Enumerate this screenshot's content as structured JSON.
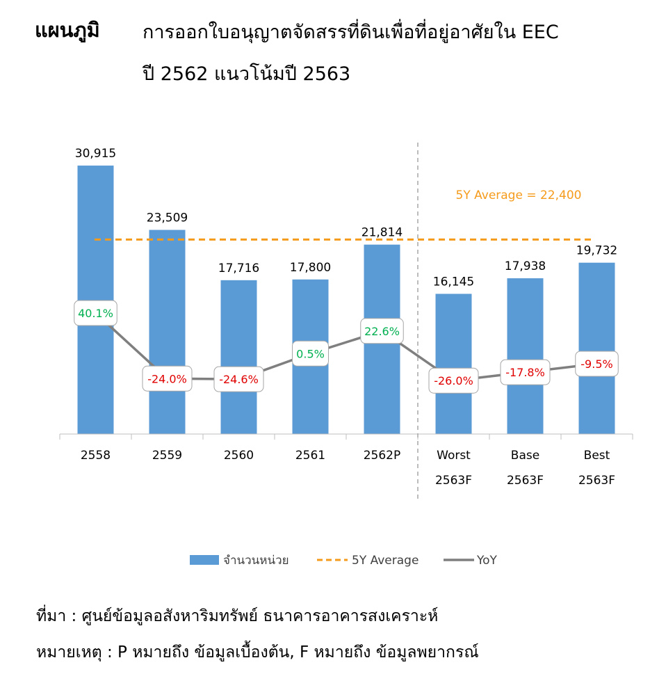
{
  "header": {
    "label": "แผนภูมิ",
    "title_line1": "การออกใบอนุญาตจัดสรรที่ดินเพื่อที่อยู่อาศัยใน EEC",
    "title_line2": "ปี 2562 แนวโน้มปี 2563"
  },
  "chart_data": {
    "type": "bar",
    "categories": [
      [
        "2558"
      ],
      [
        "2559"
      ],
      [
        "2560"
      ],
      [
        "2561"
      ],
      [
        "2562P"
      ],
      [
        "Worst",
        "2563F"
      ],
      [
        "Base",
        "2563F"
      ],
      [
        "Best",
        "2563F"
      ]
    ],
    "series": [
      {
        "name": "จำนวนหน่วย",
        "type": "bar",
        "values": [
          30915,
          23509,
          17716,
          17800,
          21814,
          16145,
          17938,
          19732
        ],
        "labels": [
          "30,915",
          "23,509",
          "17,716",
          "17,800",
          "21,814",
          "16,145",
          "17,938",
          "19,732"
        ],
        "color": "#5b9bd5"
      },
      {
        "name": "YoY",
        "type": "line",
        "values": [
          40.1,
          -24.0,
          -24.6,
          0.5,
          22.6,
          -26.0,
          -17.8,
          -9.5
        ],
        "labels": [
          "40.1%",
          "-24.0%",
          "-24.6%",
          "0.5%",
          "22.6%",
          "-26.0%",
          "-17.8%",
          "-9.5%"
        ],
        "color": "#7f7f7f"
      },
      {
        "name": "5Y Average",
        "type": "reference-line",
        "value": 22400,
        "color": "#f59b1b"
      }
    ],
    "average_annotation": "5Y Average =  22,400",
    "divider_after_category": 4,
    "legend_position": "bottom",
    "grid": false,
    "colors": {
      "bar": "#5b9bd5",
      "average": "#f59b1b",
      "yoy_line": "#7f7f7f",
      "positive": "#00b050",
      "negative": "#e00000"
    }
  },
  "footer": {
    "source": "ที่มา : ศูนย์ข้อมูลอสังหาริมทรัพย์ ธนาคารอาคารสงเคราะห์",
    "note": "หมายเหตุ : P หมายถึง ข้อมูลเบื้องต้น, F หมายถึง ข้อมูลพยากรณ์"
  }
}
